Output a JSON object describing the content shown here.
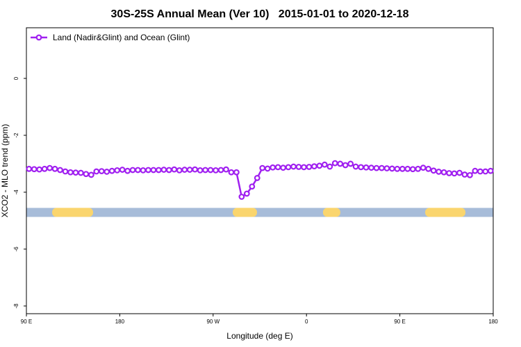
{
  "chart_data": {
    "type": "line",
    "title": "30S-25S Annual Mean (Ver 10)   2015-01-01 to 2020-12-18",
    "x_label": "Longitude (deg E)",
    "y_label": "XCO2 - MLO trend (ppm)",
    "xlim": [
      90,
      540
    ],
    "ylim": [
      -8.27,
      1.78
    ],
    "xticks": [
      {
        "value": 90,
        "label": "90 E"
      },
      180,
      {
        "value": 270,
        "label": "90 W"
      },
      {
        "value": 360,
        "label": "0"
      },
      {
        "value": 450,
        "label": "90 E"
      },
      {
        "value": 540,
        "label": "180"
      }
    ],
    "yticks": [
      0,
      -2,
      -4,
      -6,
      -8
    ],
    "legend_position": "top-left",
    "x": [
      92.5,
      97.5,
      102.5,
      107.5,
      112.5,
      117.5,
      122.5,
      127.5,
      132.5,
      137.5,
      142.5,
      147.5,
      152.5,
      157.5,
      162.5,
      167.5,
      172.5,
      177.5,
      182.5,
      187.5,
      192.5,
      197.5,
      202.5,
      207.5,
      212.5,
      217.5,
      222.5,
      227.5,
      232.5,
      237.5,
      242.5,
      247.5,
      252.5,
      257.5,
      262.5,
      267.5,
      272.5,
      277.5,
      282.5,
      287.5,
      292.5,
      297.5,
      302.5,
      307.5,
      312.5,
      317.5,
      322.5,
      327.5,
      332.5,
      337.5,
      342.5,
      347.5,
      352.5,
      357.5,
      362.5,
      367.5,
      372.5,
      377.5,
      382.5,
      387.5,
      392.5,
      397.5,
      402.5,
      407.5,
      412.5,
      417.5,
      422.5,
      427.5,
      432.5,
      437.5,
      442.5,
      447.5,
      452.5,
      457.5,
      462.5,
      467.5,
      472.5,
      477.5,
      482.5,
      487.5,
      492.5,
      497.5,
      502.5,
      507.5,
      512.5,
      517.5,
      522.5,
      527.5,
      532.5,
      537.5
    ],
    "series": [
      {
        "name": "Land (Nadir&Glint) and Ocean (Glint)",
        "color": "#a020f0",
        "values": [
          -3.18,
          -3.19,
          -3.2,
          -3.18,
          -3.15,
          -3.18,
          -3.22,
          -3.27,
          -3.3,
          -3.31,
          -3.32,
          -3.36,
          -3.39,
          -3.27,
          -3.26,
          -3.28,
          -3.25,
          -3.23,
          -3.21,
          -3.25,
          -3.22,
          -3.22,
          -3.23,
          -3.22,
          -3.22,
          -3.22,
          -3.21,
          -3.22,
          -3.2,
          -3.23,
          -3.21,
          -3.21,
          -3.2,
          -3.23,
          -3.22,
          -3.22,
          -3.23,
          -3.22,
          -3.2,
          -3.3,
          -3.3,
          -4.16,
          -4.05,
          -3.8,
          -3.5,
          -3.15,
          -3.17,
          -3.13,
          -3.12,
          -3.14,
          -3.12,
          -3.1,
          -3.11,
          -3.12,
          -3.11,
          -3.09,
          -3.07,
          -3.03,
          -3.1,
          -2.98,
          -3.0,
          -3.05,
          -3.0,
          -3.1,
          -3.12,
          -3.13,
          -3.14,
          -3.15,
          -3.15,
          -3.16,
          -3.17,
          -3.18,
          -3.18,
          -3.18,
          -3.19,
          -3.18,
          -3.14,
          -3.18,
          -3.24,
          -3.28,
          -3.3,
          -3.33,
          -3.34,
          -3.32,
          -3.38,
          -3.4,
          -3.25,
          -3.27,
          -3.27,
          -3.25
        ]
      }
    ],
    "surface_band": {
      "value": -4.71,
      "ocean_color": "#a7bcd9",
      "land_color": "#fad56e",
      "land_ranges": [
        [
          114.8,
          154.3
        ],
        [
          288.9,
          312.3
        ],
        [
          375.9,
          392.6
        ],
        [
          474.4,
          513.2
        ]
      ]
    }
  }
}
